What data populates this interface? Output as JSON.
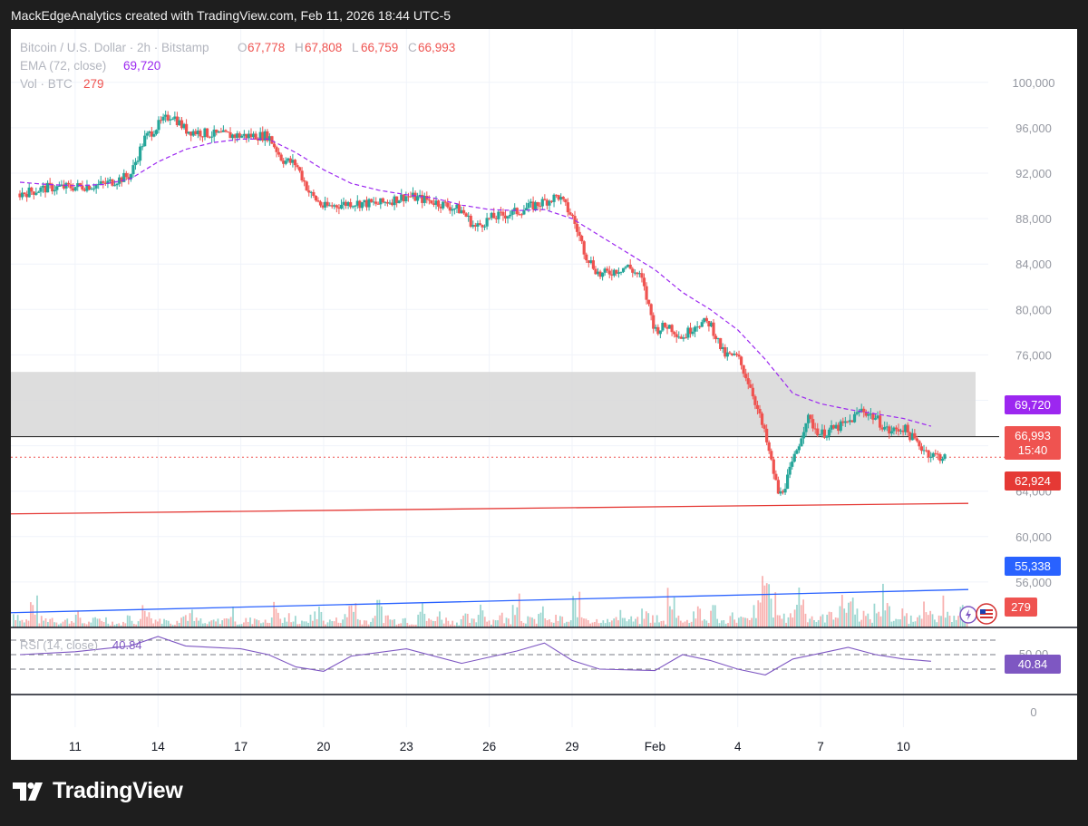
{
  "header": {
    "attribution": "MackEdgeAnalytics created with TradingView.com, Feb 11, 2026 18:44 UTC-5"
  },
  "legend": {
    "symbol": "Bitcoin / U.S. Dollar · 2h · Bitstamp",
    "o_label": "O",
    "o_value": "67,778",
    "h_label": "H",
    "h_value": "67,808",
    "l_label": "L",
    "l_value": "66,759",
    "c_label": "C",
    "c_value": "66,993",
    "ema_label": "EMA (72, close)",
    "ema_value": "69,720",
    "vol_label": "Vol · BTC",
    "vol_value": "279",
    "rsi_label": "RSI (14, close)",
    "rsi_value": "40.84"
  },
  "badges": {
    "ema": "69,720",
    "price": "66,993",
    "countdown": "15:40",
    "red_line": "62,924",
    "blue_line": "55,338",
    "volume": "279",
    "rsi": "40.84"
  },
  "footer": {
    "brand": "TradingView"
  },
  "colors": {
    "up": "#26a69a",
    "down": "#ef5350",
    "ema": "#9c27f0",
    "rsi": "#7e57c2",
    "red_line": "#e53935",
    "blue_line": "#2962ff",
    "zone": "#d9d9d9"
  },
  "icons": [
    "lightning-icon",
    "us-flag-icon",
    "tradingview-logo-icon"
  ],
  "chart_data": {
    "type": "candlestick",
    "symbol": "Bitcoin / U.S. Dollar",
    "interval": "2h",
    "exchange": "Bitstamp",
    "x_ticks": [
      "11",
      "14",
      "17",
      "20",
      "23",
      "26",
      "29",
      "Feb",
      "4",
      "7",
      "10"
    ],
    "y_ticks": [
      "100,000",
      "96,000",
      "92,000",
      "88,000",
      "84,000",
      "80,000",
      "76,000",
      "72,000",
      "68,000",
      "64,000",
      "60,000",
      "56,000"
    ],
    "y_range": [
      52000,
      101500
    ],
    "last_ohlc": {
      "open": 67778,
      "high": 67808,
      "low": 66759,
      "close": 66993
    },
    "price_path": [
      {
        "date": "Jan 9",
        "price": 90200
      },
      {
        "date": "Jan 10",
        "price": 90700
      },
      {
        "date": "Jan 11",
        "price": 90800
      },
      {
        "date": "Jan 12",
        "price": 91000
      },
      {
        "date": "Jan 13",
        "price": 91800
      },
      {
        "date": "Jan 13 12:00",
        "price": 95000
      },
      {
        "date": "Jan 14",
        "price": 96200
      },
      {
        "date": "Jan 14 12:00",
        "price": 97200
      },
      {
        "date": "Jan 15",
        "price": 95800
      },
      {
        "date": "Jan 16",
        "price": 95400
      },
      {
        "date": "Jan 17",
        "price": 95300
      },
      {
        "date": "Jan 18",
        "price": 95300
      },
      {
        "date": "Jan 18 12:00",
        "price": 93200
      },
      {
        "date": "Jan 19",
        "price": 92800
      },
      {
        "date": "Jan 19 12:00",
        "price": 90200
      },
      {
        "date": "Jan 20",
        "price": 89000
      },
      {
        "date": "Jan 21",
        "price": 89400
      },
      {
        "date": "Jan 22",
        "price": 89300
      },
      {
        "date": "Jan 23",
        "price": 90000
      },
      {
        "date": "Jan 24",
        "price": 89500
      },
      {
        "date": "Jan 25",
        "price": 88700
      },
      {
        "date": "Jan 25 12:00",
        "price": 87200
      },
      {
        "date": "Jan 26",
        "price": 88000
      },
      {
        "date": "Jan 27",
        "price": 88600
      },
      {
        "date": "Jan 28",
        "price": 89500
      },
      {
        "date": "Jan 28 12:00",
        "price": 90000
      },
      {
        "date": "Jan 29",
        "price": 88200
      },
      {
        "date": "Jan 29 12:00",
        "price": 84800
      },
      {
        "date": "Jan 30",
        "price": 83000
      },
      {
        "date": "Jan 31",
        "price": 83800
      },
      {
        "date": "Jan 31 12:00",
        "price": 82800
      },
      {
        "date": "Feb 1",
        "price": 78200
      },
      {
        "date": "Feb 1 12:00",
        "price": 78600
      },
      {
        "date": "Feb 2",
        "price": 77500
      },
      {
        "date": "Feb 2 12:00",
        "price": 78800
      },
      {
        "date": "Feb 3",
        "price": 78800
      },
      {
        "date": "Feb 3 12:00",
        "price": 76000
      },
      {
        "date": "Feb 4",
        "price": 75800
      },
      {
        "date": "Feb 4 12:00",
        "price": 73000
      },
      {
        "date": "Feb 5",
        "price": 68800
      },
      {
        "date": "Feb 5 12:00",
        "price": 63500
      },
      {
        "date": "Feb 5 18:00",
        "price": 64800
      },
      {
        "date": "Feb 6",
        "price": 66500
      },
      {
        "date": "Feb 6 12:00",
        "price": 70500
      },
      {
        "date": "Feb 7",
        "price": 69000
      },
      {
        "date": "Feb 8",
        "price": 70000
      },
      {
        "date": "Feb 8 12:00",
        "price": 71200
      },
      {
        "date": "Feb 9",
        "price": 70400
      },
      {
        "date": "Feb 9 12:00",
        "price": 69200
      },
      {
        "date": "Feb 10",
        "price": 69600
      },
      {
        "date": "Feb 10 12:00",
        "price": 68200
      },
      {
        "date": "Feb 11",
        "price": 67200
      },
      {
        "date": "Feb 11 12:00",
        "price": 66993
      }
    ],
    "ema_72": [
      {
        "date": "Jan 9",
        "price": 91200
      },
      {
        "date": "Jan 10",
        "price": 91000
      },
      {
        "date": "Jan 11",
        "price": 90900
      },
      {
        "date": "Jan 12",
        "price": 91000
      },
      {
        "date": "Jan 13",
        "price": 91500
      },
      {
        "date": "Jan 14",
        "price": 93000
      },
      {
        "date": "Jan 15",
        "price": 94100
      },
      {
        "date": "Jan 16",
        "price": 94700
      },
      {
        "date": "Jan 17",
        "price": 95000
      },
      {
        "date": "Jan 18",
        "price": 95000
      },
      {
        "date": "Jan 19",
        "price": 93800
      },
      {
        "date": "Jan 20",
        "price": 92300
      },
      {
        "date": "Jan 21",
        "price": 91100
      },
      {
        "date": "Jan 22",
        "price": 90500
      },
      {
        "date": "Jan 23",
        "price": 90100
      },
      {
        "date": "Jan 24",
        "price": 89800
      },
      {
        "date": "Jan 25",
        "price": 89200
      },
      {
        "date": "Jan 26",
        "price": 88800
      },
      {
        "date": "Jan 27",
        "price": 88700
      },
      {
        "date": "Jan 28",
        "price": 88800
      },
      {
        "date": "Jan 29",
        "price": 88000
      },
      {
        "date": "Jan 30",
        "price": 86500
      },
      {
        "date": "Jan 31",
        "price": 85000
      },
      {
        "date": "Feb 1",
        "price": 83500
      },
      {
        "date": "Feb 2",
        "price": 81500
      },
      {
        "date": "Feb 3",
        "price": 80000
      },
      {
        "date": "Feb 4",
        "price": 78200
      },
      {
        "date": "Feb 5",
        "price": 75600
      },
      {
        "date": "Feb 6",
        "price": 72600
      },
      {
        "date": "Feb 7",
        "price": 71700
      },
      {
        "date": "Feb 8",
        "price": 71200
      },
      {
        "date": "Feb 9",
        "price": 70800
      },
      {
        "date": "Feb 10",
        "price": 70400
      },
      {
        "date": "Feb 11",
        "price": 69720
      }
    ],
    "shaded_zone": [
      68800,
      74500
    ],
    "horizontal_level": 68800,
    "red_line": {
      "start": {
        "date": "Jan 9",
        "price": 62000
      },
      "end": {
        "date": "Feb 11",
        "price": 62924
      }
    },
    "blue_line": {
      "start": {
        "date": "Jan 9",
        "price": 53300
      },
      "end": {
        "date": "Feb 11",
        "price": 55338
      }
    },
    "rsi": {
      "length": 14,
      "last": 40.84,
      "bands": [
        70,
        50,
        30
      ],
      "y_ticks": [
        "50.00",
        "0"
      ],
      "y_range": [
        -5,
        80
      ],
      "path": [
        {
          "date": "Jan 9",
          "value": 50
        },
        {
          "date": "Jan 11",
          "value": 54
        },
        {
          "date": "Jan 13",
          "value": 62
        },
        {
          "date": "Jan 14",
          "value": 75
        },
        {
          "date": "Jan 15",
          "value": 62
        },
        {
          "date": "Jan 17",
          "value": 58
        },
        {
          "date": "Jan 18",
          "value": 50
        },
        {
          "date": "Jan 19",
          "value": 33
        },
        {
          "date": "Jan 20",
          "value": 27
        },
        {
          "date": "Jan 21",
          "value": 48
        },
        {
          "date": "Jan 23",
          "value": 58
        },
        {
          "date": "Jan 25",
          "value": 38
        },
        {
          "date": "Jan 27",
          "value": 55
        },
        {
          "date": "Jan 28",
          "value": 66
        },
        {
          "date": "Jan 29",
          "value": 42
        },
        {
          "date": "Jan 30",
          "value": 30
        },
        {
          "date": "Feb 1",
          "value": 28
        },
        {
          "date": "Feb 2",
          "value": 50
        },
        {
          "date": "Feb 3",
          "value": 42
        },
        {
          "date": "Feb 4",
          "value": 30
        },
        {
          "date": "Feb 5",
          "value": 22
        },
        {
          "date": "Feb 6",
          "value": 44
        },
        {
          "date": "Feb 7",
          "value": 52
        },
        {
          "date": "Feb 8",
          "value": 60
        },
        {
          "date": "Feb 9",
          "value": 50
        },
        {
          "date": "Feb 10",
          "value": 44
        },
        {
          "date": "Feb 11",
          "value": 40.84
        }
      ]
    },
    "volume_last": 279,
    "volume_bars": [
      18,
      9,
      28,
      10,
      12,
      8,
      9,
      14,
      6,
      9,
      11,
      7,
      5,
      13,
      8,
      30,
      9,
      12,
      7,
      14,
      16,
      9,
      5,
      8,
      10,
      18,
      6,
      9,
      12,
      7,
      24,
      9,
      14,
      6,
      11,
      20,
      8,
      9,
      13,
      30,
      10,
      8,
      26,
      14,
      9,
      12,
      7,
      22,
      9,
      16,
      10,
      7,
      12,
      8,
      28,
      9,
      14,
      10,
      40,
      12,
      9,
      18,
      8,
      11,
      7,
      30,
      14,
      9,
      12,
      8,
      20,
      10,
      9,
      16,
      12,
      7,
      44,
      12,
      9,
      18,
      10,
      22,
      8,
      14,
      11,
      9,
      24,
      60,
      30,
      12,
      18,
      44,
      16,
      10,
      14,
      20,
      28,
      34,
      18,
      12,
      22,
      40,
      8,
      16,
      12,
      28,
      14,
      10,
      30,
      12,
      20
    ]
  }
}
